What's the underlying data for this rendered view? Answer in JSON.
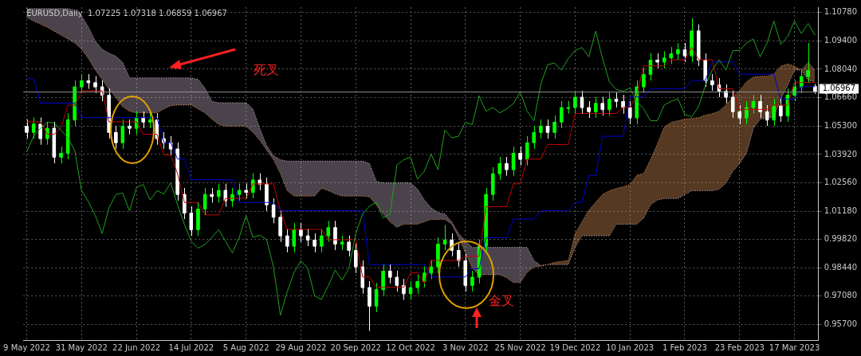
{
  "chart_data": {
    "type": "candlestick",
    "title": "EURUSD,Daily  1.07225 1.07318 1.06859 1.06967",
    "categories": [
      "9 May 2022",
      null,
      null,
      null,
      null,
      null,
      null,
      null,
      "31 May 2022",
      null,
      null,
      null,
      null,
      null,
      null,
      null,
      "22 Jun 2022",
      null,
      null,
      null,
      null,
      null,
      null,
      null,
      "14 Jul 2022",
      null,
      null,
      null,
      null,
      null,
      null,
      null,
      "5 Aug 2022",
      null,
      null,
      null,
      null,
      null,
      null,
      null,
      "29 Aug 2022",
      null,
      null,
      null,
      null,
      null,
      null,
      null,
      "20 Sep 2022",
      null,
      null,
      null,
      null,
      null,
      null,
      null,
      "12 Oct 2022",
      null,
      null,
      null,
      null,
      null,
      null,
      null,
      "3 Nov 2022",
      null,
      null,
      null,
      null,
      null,
      null,
      null,
      "25 Nov 2022",
      null,
      null,
      null,
      null,
      null,
      null,
      null,
      "19 Dec 2022",
      null,
      null,
      null,
      null,
      null,
      null,
      null,
      "10 Jan 2023",
      null,
      null,
      null,
      null,
      null,
      null,
      null,
      "1 Feb 2023",
      null,
      null,
      null,
      null,
      null,
      null,
      null,
      "23 Feb 2023",
      null,
      null,
      null,
      null,
      null,
      null,
      null,
      "17 Mar 2023",
      null,
      null,
      null
    ],
    "colors": [
      "#ffffff",
      "#00ff00",
      "#ffffff",
      "#00ff00",
      "#ffffff",
      "#00ff00",
      "#00ff00",
      "#00ff00",
      "#00ff00",
      "#ffffff",
      "#ffffff",
      "#ffffff",
      "#ffffff",
      "#ffffff",
      "#00ff00",
      "#ffffff",
      "#00ff00",
      "#ffffff",
      "#00ff00",
      "#ffffff",
      "#ffffff",
      "#ffffff",
      "#ffffff",
      "#ffffff",
      "#ffffff",
      "#00ff00",
      "#00ff00",
      "#ffffff",
      "#00ff00",
      "#ffffff",
      "#00ff00",
      "#00ff00",
      "#ffffff",
      "#00ff00",
      "#ffffff",
      "#ffffff",
      "#ffffff",
      "#ffffff",
      "#ffffff",
      "#00ff00",
      "#ffffff",
      "#ffffff",
      "#ffffff",
      "#00ff00",
      "#00ff00",
      "#ffffff",
      "#00ff00",
      "#ffffff",
      "#ffffff",
      "#ffffff",
      "#ffffff",
      "#00ff00",
      "#00ff00",
      "#ffffff",
      "#ffffff",
      "#ffffff",
      "#00ff00",
      "#00ff00",
      "#00ff00",
      "#00ff00",
      "#00ff00",
      "#00ff00",
      "#ffffff",
      "#ffffff",
      "#ffffff",
      "#00ff00",
      "#00ff00",
      "#00ff00",
      "#00ff00",
      "#00ff00",
      "#ffffff",
      "#00ff00",
      "#ffffff",
      "#00ff00",
      "#00ff00",
      "#00ff00",
      "#ffffff",
      "#00ff00",
      "#00ff00",
      "#00ff00",
      "#00ff00",
      "#ffffff",
      "#ffffff",
      "#00ff00",
      "#ffffff",
      "#00ff00",
      "#ffffff",
      "#ffffff",
      "#ffffff",
      "#00ff00",
      "#00ff00",
      "#00ff00",
      "#ffffff",
      "#00ff00",
      "#00ff00",
      "#00ff00",
      "#ffffff",
      "#00ff00",
      "#ffffff",
      "#ffffff",
      "#ffffff",
      "#ffffff",
      "#ffffff",
      "#ffffff",
      "#ffffff",
      "#00ff00",
      "#00ff00",
      "#ffffff",
      "#ffffff",
      "#00ff00",
      "#ffffff",
      "#00ff00",
      "#00ff00",
      "#00ff00",
      "#00ff00",
      "#ffffff"
    ],
    "ohlc": [
      [
        1.053,
        1.056,
        1.047,
        1.05
      ],
      [
        1.05,
        1.057,
        1.047,
        1.054
      ],
      [
        1.054,
        1.057,
        1.044,
        1.047
      ],
      [
        1.047,
        1.055,
        1.044,
        1.052
      ],
      [
        1.052,
        1.055,
        1.035,
        1.038
      ],
      [
        1.038,
        1.043,
        1.035,
        1.04
      ],
      [
        1.04,
        1.059,
        1.037,
        1.056
      ],
      [
        1.056,
        1.075,
        1.053,
        1.072
      ],
      [
        1.072,
        1.078,
        1.069,
        1.075
      ],
      [
        1.075,
        1.078,
        1.071,
        1.074
      ],
      [
        1.074,
        1.077,
        1.069,
        1.072
      ],
      [
        1.072,
        1.075,
        1.065,
        1.068
      ],
      [
        1.068,
        1.071,
        1.047,
        1.05
      ],
      [
        1.05,
        1.053,
        1.042,
        1.045
      ],
      [
        1.045,
        1.056,
        1.042,
        1.053
      ],
      [
        1.053,
        1.056,
        1.049,
        1.052
      ],
      [
        1.052,
        1.06,
        1.049,
        1.057
      ],
      [
        1.057,
        1.06,
        1.052,
        1.055
      ],
      [
        1.055,
        1.059,
        1.052,
        1.056
      ],
      [
        1.056,
        1.059,
        1.044,
        1.047
      ],
      [
        1.047,
        1.05,
        1.042,
        1.045
      ],
      [
        1.045,
        1.048,
        1.039,
        1.042
      ],
      [
        1.042,
        1.045,
        1.017,
        1.02
      ],
      [
        1.02,
        1.023,
        1.008,
        1.011
      ],
      [
        1.011,
        1.014,
        1.0,
        1.003
      ],
      [
        1.003,
        1.016,
        1.0,
        1.013
      ],
      [
        1.013,
        1.023,
        1.01,
        1.02
      ],
      [
        1.02,
        1.023,
        1.016,
        1.019
      ],
      [
        1.019,
        1.025,
        1.016,
        1.022
      ],
      [
        1.022,
        1.025,
        1.014,
        1.017
      ],
      [
        1.017,
        1.023,
        1.014,
        1.02
      ],
      [
        1.02,
        1.025,
        1.017,
        1.022
      ],
      [
        1.022,
        1.025,
        1.018,
        1.021
      ],
      [
        1.021,
        1.03,
        1.018,
        1.027
      ],
      [
        1.027,
        1.03,
        1.022,
        1.025
      ],
      [
        1.025,
        1.028,
        1.012,
        1.015
      ],
      [
        1.015,
        1.018,
        1.006,
        1.009
      ],
      [
        1.009,
        1.012,
        0.997,
        1.0
      ],
      [
        1.0,
        1.003,
        0.992,
        0.995
      ],
      [
        0.995,
        1.006,
        0.992,
        1.003
      ],
      [
        1.003,
        1.006,
        0.997,
        1.0
      ],
      [
        1.0,
        1.003,
        0.995,
        0.998
      ],
      [
        0.998,
        1.001,
        0.992,
        0.995
      ],
      [
        0.995,
        1.003,
        0.992,
        1.0
      ],
      [
        1.0,
        1.007,
        0.997,
        1.004
      ],
      [
        1.004,
        1.007,
        0.993,
        0.996
      ],
      [
        0.996,
        1.0,
        0.993,
        0.997
      ],
      [
        0.997,
        1.0,
        0.99,
        0.993
      ],
      [
        0.993,
        0.996,
        0.982,
        0.985
      ],
      [
        0.985,
        0.988,
        0.972,
        0.975
      ],
      [
        0.975,
        0.978,
        0.954,
        0.966
      ],
      [
        0.966,
        0.977,
        0.963,
        0.974
      ],
      [
        0.974,
        0.986,
        0.971,
        0.983
      ],
      [
        0.983,
        0.986,
        0.977,
        0.98
      ],
      [
        0.98,
        0.983,
        0.973,
        0.976
      ],
      [
        0.976,
        0.979,
        0.969,
        0.972
      ],
      [
        0.972,
        0.978,
        0.969,
        0.975
      ],
      [
        0.975,
        0.981,
        0.972,
        0.978
      ],
      [
        0.978,
        0.985,
        0.975,
        0.982
      ],
      [
        0.982,
        0.988,
        0.979,
        0.985
      ],
      [
        0.985,
        0.999,
        0.982,
        0.996
      ],
      [
        0.996,
        1.005,
        0.993,
        0.998
      ],
      [
        0.998,
        1.001,
        0.99,
        0.993
      ],
      [
        0.993,
        0.996,
        0.985,
        0.988
      ],
      [
        0.988,
        0.991,
        0.973,
        0.976
      ],
      [
        0.976,
        0.983,
        0.973,
        0.98
      ],
      [
        0.98,
        0.998,
        0.977,
        0.995
      ],
      [
        0.995,
        1.023,
        0.992,
        1.02
      ],
      [
        1.02,
        1.033,
        1.017,
        1.03
      ],
      [
        1.03,
        1.038,
        1.027,
        1.035
      ],
      [
        1.035,
        1.038,
        1.029,
        1.032
      ],
      [
        1.032,
        1.043,
        1.029,
        1.04
      ],
      [
        1.04,
        1.043,
        1.034,
        1.037
      ],
      [
        1.037,
        1.048,
        1.034,
        1.045
      ],
      [
        1.045,
        1.053,
        1.042,
        1.05
      ],
      [
        1.05,
        1.056,
        1.047,
        1.053
      ],
      [
        1.053,
        1.056,
        1.047,
        1.05
      ],
      [
        1.05,
        1.058,
        1.047,
        1.055
      ],
      [
        1.055,
        1.065,
        1.052,
        1.062
      ],
      [
        1.062,
        1.065,
        1.059,
        1.062
      ],
      [
        1.062,
        1.07,
        1.059,
        1.067
      ],
      [
        1.067,
        1.07,
        1.059,
        1.062
      ],
      [
        1.062,
        1.065,
        1.057,
        1.06
      ],
      [
        1.06,
        1.067,
        1.057,
        1.064
      ],
      [
        1.064,
        1.067,
        1.058,
        1.061
      ],
      [
        1.061,
        1.069,
        1.058,
        1.066
      ],
      [
        1.066,
        1.069,
        1.062,
        1.065
      ],
      [
        1.065,
        1.068,
        1.059,
        1.062
      ],
      [
        1.062,
        1.065,
        1.054,
        1.057
      ],
      [
        1.057,
        1.075,
        1.054,
        1.072
      ],
      [
        1.072,
        1.081,
        1.069,
        1.078
      ],
      [
        1.078,
        1.088,
        1.075,
        1.085
      ],
      [
        1.085,
        1.088,
        1.081,
        1.084
      ],
      [
        1.084,
        1.089,
        1.081,
        1.086
      ],
      [
        1.086,
        1.091,
        1.083,
        1.088
      ],
      [
        1.088,
        1.093,
        1.085,
        1.09
      ],
      [
        1.09,
        1.093,
        1.084,
        1.087
      ],
      [
        1.087,
        1.105,
        1.084,
        1.099
      ],
      [
        1.099,
        1.102,
        1.082,
        1.085
      ],
      [
        1.085,
        1.088,
        1.072,
        1.075
      ],
      [
        1.075,
        1.078,
        1.07,
        1.073
      ],
      [
        1.073,
        1.076,
        1.067,
        1.07
      ],
      [
        1.07,
        1.073,
        1.064,
        1.067
      ],
      [
        1.067,
        1.07,
        1.057,
        1.06
      ],
      [
        1.06,
        1.063,
        1.054,
        1.057
      ],
      [
        1.057,
        1.065,
        1.054,
        1.062
      ],
      [
        1.062,
        1.068,
        1.059,
        1.065
      ],
      [
        1.065,
        1.068,
        1.057,
        1.06
      ],
      [
        1.06,
        1.063,
        1.053,
        1.056
      ],
      [
        1.056,
        1.066,
        1.053,
        1.063
      ],
      [
        1.063,
        1.066,
        1.055,
        1.058
      ],
      [
        1.058,
        1.071,
        1.055,
        1.068
      ],
      [
        1.068,
        1.075,
        1.065,
        1.072
      ],
      [
        1.072,
        1.08,
        1.069,
        1.077
      ],
      [
        1.077,
        1.093,
        1.074,
        1.08
      ],
      [
        1.07225,
        1.07318,
        1.06859,
        1.06967
      ]
    ],
    "series": [
      {
        "type": "line",
        "color": "#f4a460",
        "line_style": "dotted",
        "values": [
          1.1055,
          1.1037,
          1.1022,
          1.1007,
          1.0988,
          1.0969,
          1.095,
          1.0931,
          1.0901,
          1.0856,
          1.08,
          1.0755,
          1.0706,
          1.0668,
          1.0623,
          1.0601,
          1.0593,
          1.0593,
          1.0593,
          1.0593,
          1.0612,
          1.0627,
          1.0631,
          1.0631,
          1.0631,
          1.0612,
          1.0593,
          1.0563,
          1.0537,
          1.0529,
          1.0529,
          1.0529,
          1.0529,
          1.0499,
          1.0461,
          1.0413,
          1.0367,
          1.03,
          1.0217,
          1.0191,
          1.0191,
          1.0191,
          1.0191,
          1.0228,
          1.0217,
          1.0202,
          1.0191,
          1.0191,
          1.0191,
          1.0191,
          1.0187,
          1.0149,
          1.0104,
          1.0067,
          1.004,
          1.0055,
          1.0055,
          1.0055,
          1.0067,
          1.0078,
          1.0078,
          1.0078,
          1.0055,
          0.9991,
          0.9916,
          0.9841,
          0.9811,
          0.9811,
          0.9811,
          0.9811,
          0.9796,
          0.9773,
          0.9773,
          0.9822,
          0.9848,
          0.9852,
          0.986,
          0.9871,
          0.9875,
          0.9879,
          1.001,
          1.0067,
          1.0123,
          1.0161,
          1.0198,
          1.0217,
          1.0228,
          1.0236,
          1.0247,
          1.0292,
          1.03,
          1.0367,
          1.0443,
          1.0525,
          1.0548,
          1.0555,
          1.0563,
          1.0567,
          1.057,
          1.0582,
          1.0589,
          1.0601,
          1.0631,
          1.0668,
          1.0702,
          1.0743,
          1.0766,
          1.077,
          1.077,
          1.0781,
          1.0819,
          1.083,
          1.0819,
          1.08,
          1.0837,
          1.08
        ]
      },
      {
        "type": "line",
        "color": "#d8bfd8",
        "line_style": "dotted",
        "lower": [
          1.1055,
          1.1037,
          1.1022,
          1.1007,
          1.0988,
          1.0969,
          1.095,
          1.0931,
          1.0901,
          1.0856,
          1.08,
          1.0755,
          1.0706,
          1.0668,
          1.0623,
          1.0601,
          1.0593,
          1.0593,
          1.0593,
          1.0593,
          1.0612,
          1.0627,
          1.0631,
          1.0631,
          1.0631,
          1.0612,
          1.0593,
          1.0563,
          1.0537,
          1.0529,
          1.0529,
          1.0529,
          1.0529,
          1.0499,
          1.0461,
          1.0413,
          1.0367,
          1.03,
          1.0217,
          1.0191,
          1.0191,
          1.0191,
          1.0191,
          1.0228,
          1.0217,
          1.0202,
          1.0191,
          1.0191,
          1.0191,
          1.0191,
          1.0187,
          1.0149,
          1.0104,
          1.0067,
          1.004,
          1.0055,
          1.0055,
          1.0055,
          1.0067,
          1.0078,
          1.0078,
          1.0078,
          1.0055,
          0.9991,
          0.9916,
          0.9841,
          0.9811,
          0.9811,
          0.9811,
          0.9811,
          0.9796,
          0.9773,
          0.9773,
          0.9822,
          0.9848,
          0.9852,
          0.986,
          0.9871,
          0.9875,
          0.9879,
          1.001,
          1.0067,
          1.0123,
          1.0161,
          1.0198,
          1.0217,
          1.0228,
          1.0236,
          1.0247,
          1.0292,
          1.03,
          1.0367,
          1.0443,
          1.0525,
          1.0548,
          1.0555,
          1.0563,
          1.0567,
          1.057,
          1.0582,
          1.0589,
          1.0601,
          1.0631,
          1.0668,
          1.0702,
          1.0743,
          1.0766,
          1.077,
          1.077,
          1.0781,
          1.0819,
          1.083,
          1.0819,
          1.08,
          1.0837,
          1.08
        ],
        "upper": [
          1.1097,
          1.1097,
          1.1097,
          1.1097,
          1.1097,
          1.1097,
          1.1097,
          1.1089,
          1.1063,
          1.1007,
          1.0939,
          1.0901,
          1.0882,
          1.0867,
          1.0837,
          1.0762,
          1.0762,
          1.0762,
          1.0762,
          1.0762,
          1.0762,
          1.0762,
          1.0762,
          1.0762,
          1.0762,
          1.0755,
          1.0713,
          1.0649,
          1.0642,
          1.0642,
          1.0642,
          1.0642,
          1.0642,
          1.0612,
          1.0518,
          1.0435,
          1.0386,
          1.0367,
          1.036,
          1.036,
          1.036,
          1.036,
          1.036,
          1.036,
          1.036,
          1.036,
          1.036,
          1.036,
          1.036,
          1.036,
          1.0349,
          1.0262,
          1.0255,
          1.0255,
          1.0255,
          1.0255,
          1.0255,
          1.0225,
          1.0172,
          1.0134,
          1.0112,
          1.0104,
          1.0067,
          1.001,
          0.9973,
          0.9943,
          0.9943,
          0.9943,
          0.9943,
          0.9943,
          0.9943,
          0.9943,
          0.9943,
          0.9943,
          0.9879,
          0.9856,
          0.986,
          0.986,
          0.986,
          0.986,
          0.9943,
          0.9999,
          0.9999,
          0.9999,
          0.9999,
          0.9999,
          1.0055,
          1.0055,
          1.0055,
          1.0055,
          1.0085,
          1.0149,
          1.0172,
          1.0179,
          1.0179,
          1.0179,
          1.0198,
          1.0217,
          1.0217,
          1.0217,
          1.0217,
          1.0224,
          1.0254,
          1.0311,
          1.0349,
          1.0398,
          1.0518,
          1.0563,
          1.0567,
          1.0574,
          1.0661,
          1.0725,
          1.08,
          1.08,
          1.0751,
          1.0743
        ],
        "values": [
          1.1097,
          1.1097,
          1.1097,
          1.1097,
          1.1097,
          1.1097,
          1.1097,
          1.1089,
          1.1063,
          1.1007,
          1.0939,
          1.0901,
          1.0882,
          1.0867,
          1.0837,
          1.0762,
          1.0762,
          1.0762,
          1.0762,
          1.0762,
          1.0762,
          1.0762,
          1.0762,
          1.0762,
          1.0762,
          1.0755,
          1.0713,
          1.0649,
          1.0642,
          1.0642,
          1.0642,
          1.0642,
          1.0642,
          1.0612,
          1.0518,
          1.0435,
          1.0386,
          1.0367,
          1.036,
          1.036,
          1.036,
          1.036,
          1.036,
          1.036,
          1.036,
          1.036,
          1.036,
          1.036,
          1.036,
          1.036,
          1.0349,
          1.0262,
          1.0255,
          1.0255,
          1.0255,
          1.0255,
          1.0255,
          1.0225,
          1.0172,
          1.0134,
          1.0112,
          1.0104,
          1.0067,
          1.001,
          0.9973,
          0.9943,
          0.9943,
          0.9943,
          0.9943,
          0.9943,
          0.9943,
          0.9943,
          0.9943,
          0.9943,
          0.9879,
          0.9856,
          0.986,
          0.986,
          0.986,
          0.986,
          0.9943,
          0.9999,
          0.9999,
          0.9999,
          0.9999,
          0.9999,
          1.0055,
          1.0055,
          1.0055,
          1.0055,
          1.0085,
          1.0149,
          1.0172,
          1.0179,
          1.0179,
          1.0179,
          1.0198,
          1.0217,
          1.0217,
          1.0217,
          1.0217,
          1.0224,
          1.0254,
          1.0311,
          1.0349,
          1.0398,
          1.0518,
          1.0563,
          1.0567,
          1.0574,
          1.0661,
          1.0725,
          1.08,
          1.08,
          1.0751,
          1.0743
        ]
      },
      {
        "type": "line",
        "color": "#1fa01f",
        "values": [
          1.0405,
          1.048,
          1.0518,
          1.0548,
          1.0544,
          1.051,
          1.0473,
          1.0412,
          1.0217,
          1.0164,
          1.0097,
          1.001,
          1.0134,
          1.0198,
          1.0206,
          1.0119,
          1.0232,
          1.0247,
          1.0172,
          1.0217,
          1.0202,
          1.0255,
          1.0149,
          1.0055,
          0.9973,
          0.9939,
          0.9958,
          0.9991,
          1.0029,
          0.9973,
          0.9916,
          0.9991,
          1.0097,
          0.9991,
          1.0002,
          0.998,
          0.9848,
          0.9615,
          0.9728,
          0.9822,
          0.9878,
          0.9841,
          0.9709,
          0.9691,
          0.9758,
          0.9834,
          0.9785,
          0.9841,
          1.001,
          1.0104,
          1.0142,
          1.0161,
          1.0085,
          1.0104,
          1.0341,
          1.0367,
          1.0379,
          1.0273,
          1.0311,
          1.0394,
          1.0318,
          1.051,
          1.0473,
          1.048,
          1.0548,
          1.0536,
          1.0676,
          1.0601,
          1.0619,
          1.0593,
          1.0612,
          1.0638,
          1.0694,
          1.0601,
          1.0555,
          1.0732,
          1.0826,
          1.0834,
          1.08,
          1.0856,
          1.0894,
          1.0909,
          1.0864,
          1.0988,
          1.0856,
          1.0743,
          1.0706,
          1.0698,
          1.0713,
          1.0649,
          1.0612,
          1.0555,
          1.0555,
          1.0631,
          1.0649,
          1.0661,
          1.0585,
          1.0574,
          1.0623,
          1.0725,
          1.08,
          1.0849,
          1.08,
          1.0894,
          1.0894,
          1.0931,
          1.095,
          1.0864,
          1.0931,
          1.1037,
          1.0924,
          1.0961,
          1.1037,
          1.0976,
          1.1025,
          1.0969
        ]
      },
      {
        "type": "line",
        "color": "#0000d0",
        "values": [
          1.076,
          1.076,
          1.064,
          1.064,
          1.064,
          1.064,
          1.064,
          1.064,
          1.057,
          1.057,
          1.057,
          1.057,
          1.057,
          1.057,
          1.057,
          1.057,
          1.057,
          1.057,
          1.057,
          1.057,
          1.045,
          1.045,
          1.037,
          1.037,
          1.027,
          1.027,
          1.027,
          1.027,
          1.027,
          1.027,
          1.027,
          1.016,
          1.016,
          1.016,
          1.016,
          1.016,
          1.016,
          1.012,
          1.012,
          1.012,
          1.012,
          1.012,
          1.012,
          1.012,
          1.012,
          1.012,
          1.012,
          1.012,
          1.012,
          1.012,
          0.986,
          0.986,
          0.986,
          0.986,
          0.986,
          0.986,
          0.986,
          0.986,
          0.986,
          0.98,
          0.98,
          0.98,
          0.98,
          0.98,
          0.98,
          0.984,
          0.984,
          0.999,
          0.999,
          0.999,
          0.999,
          1.008,
          1.008,
          1.008,
          1.008,
          1.012,
          1.012,
          1.012,
          1.012,
          1.012,
          1.016,
          1.016,
          1.029,
          1.029,
          1.048,
          1.048,
          1.048,
          1.048,
          1.067,
          1.067,
          1.067,
          1.071,
          1.071,
          1.071,
          1.071,
          1.071,
          1.071,
          1.075,
          1.075,
          1.075,
          1.084,
          1.084,
          1.084,
          1.084,
          1.078,
          1.078,
          1.078,
          1.078,
          1.078,
          1.078,
          1.066,
          1.066,
          1.066,
          1.072,
          1.072,
          1.072
        ]
      },
      {
        "type": "line",
        "color": "#c00000",
        "values": [
          1.055,
          1.055,
          1.055,
          1.049,
          1.049,
          1.052,
          1.063,
          1.063,
          1.07,
          1.07,
          1.07,
          1.07,
          1.055,
          1.055,
          1.055,
          1.055,
          1.055,
          1.049,
          1.049,
          1.049,
          1.039,
          1.039,
          1.03,
          1.016,
          1.016,
          1.016,
          1.01,
          1.01,
          1.01,
          1.018,
          1.018,
          1.018,
          1.018,
          1.025,
          1.025,
          1.025,
          1.025,
          1.012,
          1.003,
          1.003,
          1.003,
          1.003,
          1.003,
          1.003,
          0.998,
          0.998,
          0.998,
          0.998,
          0.998,
          0.98,
          0.98,
          0.975,
          0.975,
          0.975,
          0.975,
          0.975,
          0.982,
          0.982,
          0.977,
          0.988,
          0.988,
          0.988,
          0.988,
          0.988,
          0.99,
          0.99,
          0.99,
          1.014,
          1.014,
          1.014,
          1.014,
          1.025,
          1.025,
          1.037,
          1.037,
          1.037,
          1.044,
          1.044,
          1.044,
          1.044,
          1.059,
          1.059,
          1.059,
          1.059,
          1.059,
          1.059,
          1.059,
          1.062,
          1.062,
          1.068,
          1.082,
          1.082,
          1.082,
          1.082,
          1.085,
          1.085,
          1.085,
          1.091,
          1.085,
          1.085,
          1.085,
          1.071,
          1.071,
          1.071,
          1.061,
          1.061,
          1.061,
          1.061,
          1.061,
          1.063,
          1.063,
          1.063,
          1.074,
          1.074,
          1.074,
          1.074
        ]
      }
    ],
    "ylim": [
      0.9495,
      1.1104
    ],
    "yticks": [
      {
        "value": 0.957,
        "label": "0.95700"
      },
      {
        "value": 0.9708,
        "label": "0.97080"
      },
      {
        "value": 0.9844,
        "label": "0.98440"
      },
      {
        "value": 0.9982,
        "label": "0.99820"
      },
      {
        "value": 1.0118,
        "label": "1.01180"
      },
      {
        "value": 1.0256,
        "label": "1.02560"
      },
      {
        "value": 1.0392,
        "label": "1.03920"
      },
      {
        "value": 1.053,
        "label": "1.05300"
      },
      {
        "value": 1.0666,
        "label": "1.06660"
      },
      {
        "value": 1.0804,
        "label": "1.08040"
      },
      {
        "value": 1.094,
        "label": "1.09400"
      },
      {
        "value": 1.1078,
        "label": "1.10780"
      }
    ],
    "grid": true,
    "ref_lines": [
      {
        "axis": "y",
        "value": 1.06967,
        "label": "1.06967",
        "color": "#8c8c8c"
      }
    ],
    "annotations": [
      "死叉",
      "金叉"
    ]
  }
}
